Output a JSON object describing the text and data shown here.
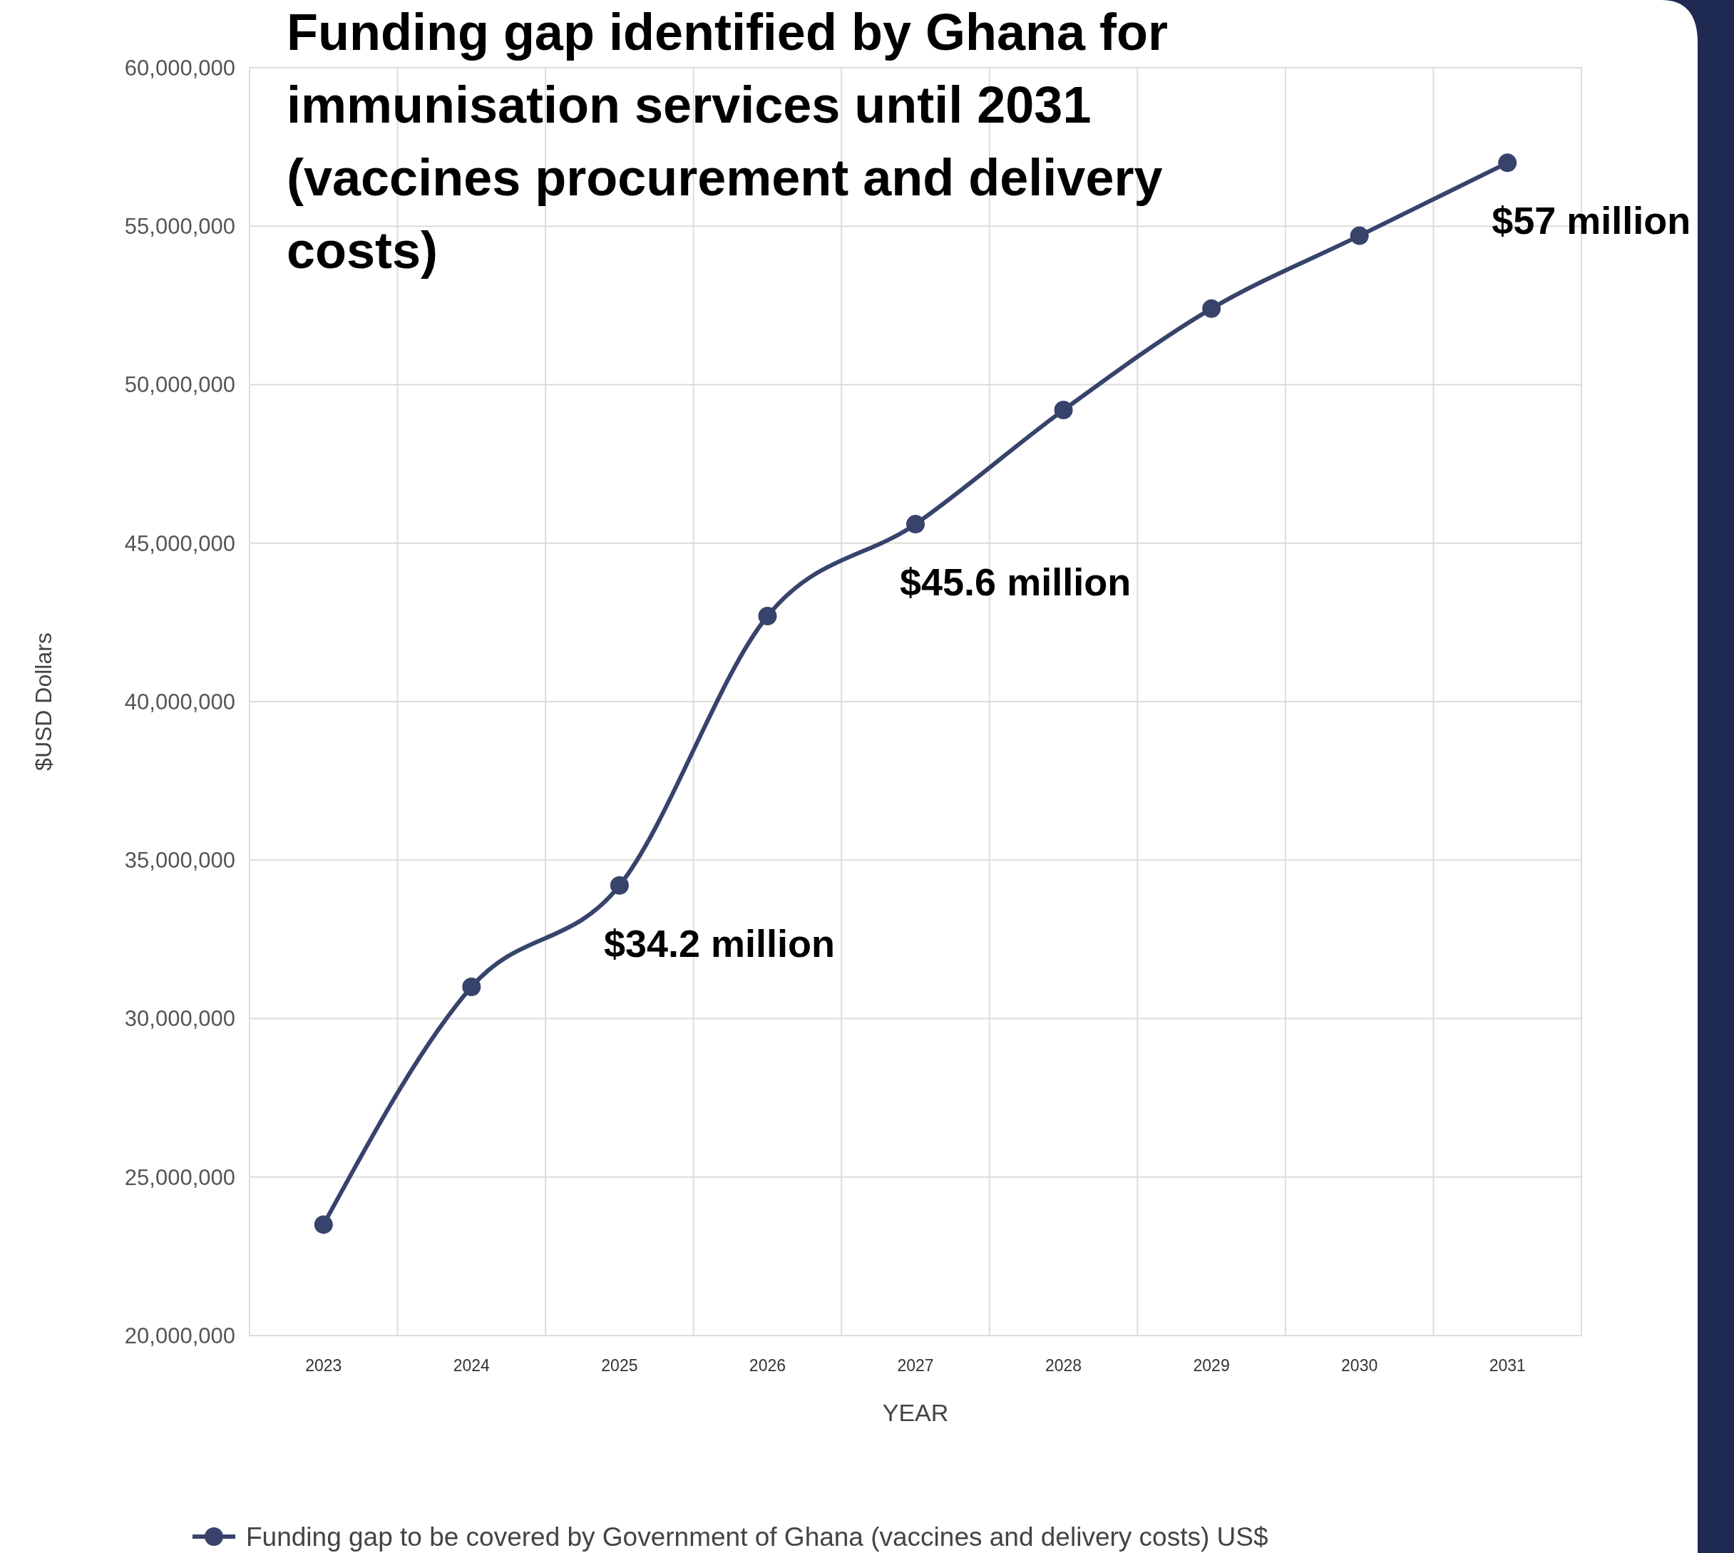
{
  "chart_data": {
    "type": "line",
    "title": "Funding gap identified by Ghana for immunisation services until 2031 (vaccines procurement and delivery costs)",
    "xlabel": "YEAR",
    "ylabel": "$USD Dollars",
    "categories": [
      "2023",
      "2024",
      "2025",
      "2026",
      "2027",
      "2028",
      "2029",
      "2030",
      "2031"
    ],
    "series": [
      {
        "name": "Funding gap to be covered by Government of Ghana (vaccines and delivery costs) US$",
        "color": "#37436b",
        "values": [
          23500000,
          31000000,
          34200000,
          42700000,
          45600000,
          49200000,
          52400000,
          54700000,
          57000000
        ]
      }
    ],
    "ylim": [
      20000000,
      60000000
    ],
    "yticks": [
      {
        "value": 20000000,
        "label": "20,000,000"
      },
      {
        "value": 25000000,
        "label": "25,000,000"
      },
      {
        "value": 30000000,
        "label": "30,000,000"
      },
      {
        "value": 35000000,
        "label": "35,000,000"
      },
      {
        "value": 40000000,
        "label": "40,000,000"
      },
      {
        "value": 45000000,
        "label": "45,000,000"
      },
      {
        "value": 50000000,
        "label": "50,000,000"
      },
      {
        "value": 55000000,
        "label": "55,000,000"
      },
      {
        "value": 60000000,
        "label": "60,000,000"
      }
    ],
    "grid": true,
    "legend": "bottom",
    "marker": "circle",
    "line_style": "solid",
    "annotations": [
      {
        "text": "$34.2 million",
        "x": "2025",
        "y": 34200000
      },
      {
        "text": "$45.6 million",
        "x": "2027",
        "y": 45600000
      },
      {
        "text": "$57 million",
        "x": "2031",
        "y": 57000000
      }
    ]
  }
}
